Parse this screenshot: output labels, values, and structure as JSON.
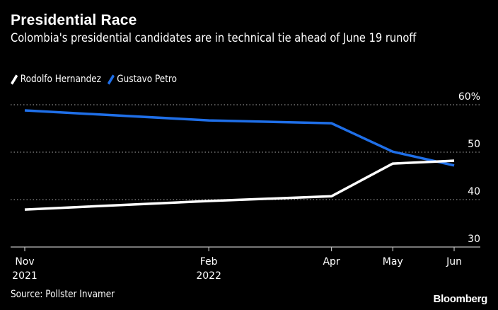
{
  "chart_data": {
    "type": "line",
    "title": "Presidential Race",
    "subtitle": "Colombia's presidential candidates are in technical tie ahead of June 19 runoff",
    "xlabel": "",
    "ylabel": "",
    "x": [
      "2021-11",
      "2022-02",
      "2022-04",
      "2022-05",
      "2022-06"
    ],
    "x_ticks": [
      {
        "key": "2021-11",
        "month": "Nov",
        "year": "2021"
      },
      {
        "key": "2022-02",
        "month": "Feb",
        "year": "2022"
      },
      {
        "key": "2022-04",
        "month": "Apr",
        "year": ""
      },
      {
        "key": "2022-05",
        "month": "May",
        "year": ""
      },
      {
        "key": "2022-06",
        "month": "Jun",
        "year": ""
      }
    ],
    "series": [
      {
        "name": "Rodolfo Hernandez",
        "color": "#ffffff",
        "values": [
          37.9,
          39.7,
          40.7,
          47.6,
          48.2
        ]
      },
      {
        "name": "Gustavo Petro",
        "color": "#1f6fe8",
        "values": [
          58.8,
          56.7,
          56.1,
          50.1,
          47.2
        ]
      }
    ],
    "ylim": [
      30,
      60
    ],
    "y_ticks": [
      {
        "value": 60,
        "label": "60%"
      },
      {
        "value": 50,
        "label": "50"
      },
      {
        "value": 40,
        "label": "40"
      },
      {
        "value": 30,
        "label": "30"
      }
    ],
    "grid": true,
    "legend_position": "top-left"
  },
  "footer": {
    "source": "Source: Pollster Invamer",
    "brand": "Bloomberg"
  }
}
